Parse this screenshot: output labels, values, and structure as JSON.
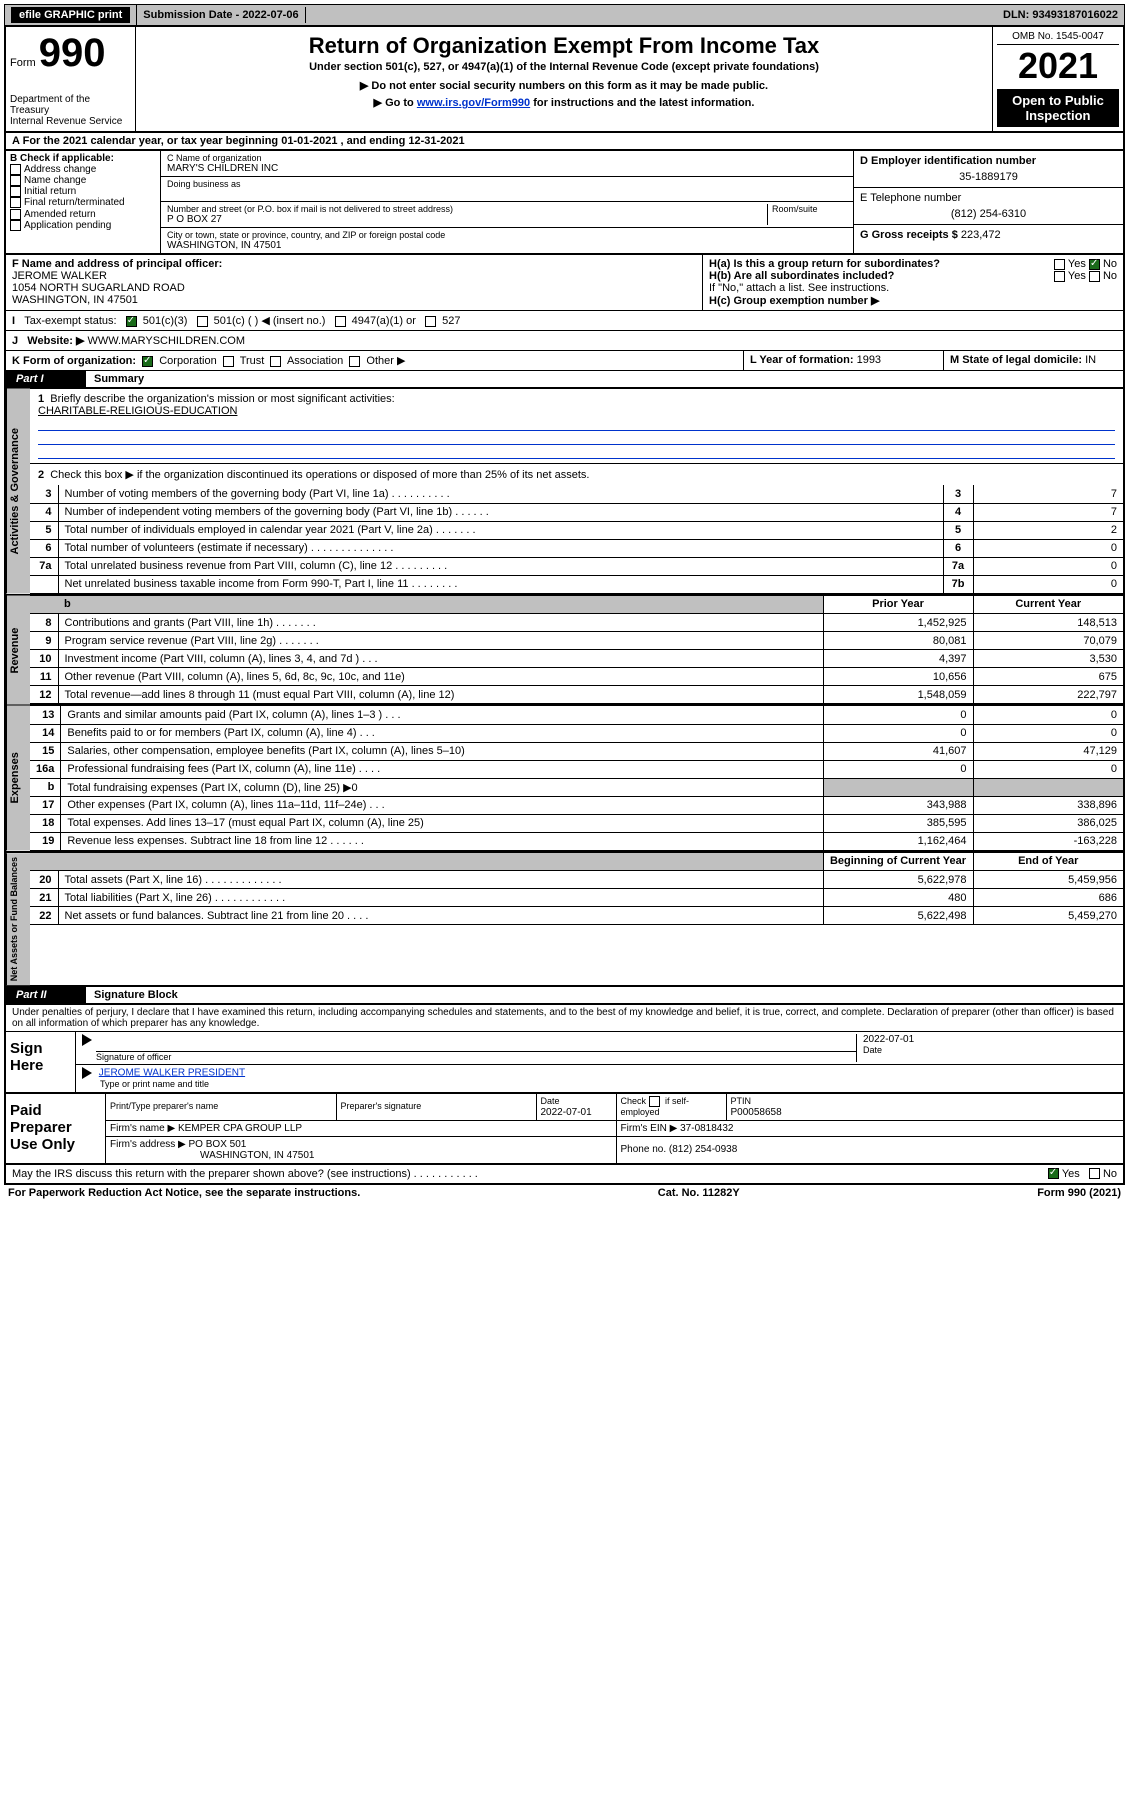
{
  "topbar": {
    "efile": "efile GRAPHIC print",
    "submission_label": "Submission Date - 2022-07-06",
    "dln": "DLN: 93493187016022"
  },
  "header": {
    "form_prefix": "Form",
    "form_number": "990",
    "dept": "Department of the Treasury",
    "irs": "Internal Revenue Service",
    "title": "Return of Organization Exempt From Income Tax",
    "sub1": "Under section 501(c), 527, or 4947(a)(1) of the Internal Revenue Code (except private foundations)",
    "sub2": "▶ Do not enter social security numbers on this form as it may be made public.",
    "sub3_pre": "▶ Go to ",
    "sub3_link": "www.irs.gov/Form990",
    "sub3_post": " for instructions and the latest information.",
    "omb": "OMB No. 1545-0047",
    "year": "2021",
    "open_public": "Open to Public Inspection"
  },
  "line_a": "For the 2021 calendar year, or tax year beginning 01-01-2021    , and ending 12-31-2021",
  "box_b": {
    "label": "B Check if applicable:",
    "opts": [
      "Address change",
      "Name change",
      "Initial return",
      "Final return/terminated",
      "Amended return",
      "Application pending"
    ]
  },
  "box_c": {
    "name_label": "C Name of organization",
    "name": "MARY'S CHILDREN INC",
    "dba_label": "Doing business as",
    "addr_label": "Number and street (or P.O. box if mail is not delivered to street address)",
    "room_label": "Room/suite",
    "addr": "P O BOX 27",
    "city_label": "City or town, state or province, country, and ZIP or foreign postal code",
    "city": "WASHINGTON, IN  47501"
  },
  "box_d": {
    "label": "D Employer identification number",
    "val": "35-1889179"
  },
  "box_e": {
    "label": "E Telephone number",
    "val": "(812) 254-6310"
  },
  "box_g": {
    "label": "G Gross receipts $",
    "val": "223,472"
  },
  "box_f": {
    "label": "F Name and address of principal officer:",
    "name": "JEROME WALKER",
    "addr1": "1054 NORTH SUGARLAND ROAD",
    "addr2": "WASHINGTON, IN  47501"
  },
  "box_h": {
    "ha": "H(a)  Is this a group return for subordinates?",
    "hb": "H(b)  Are all subordinates included?",
    "hb_note": "If \"No,\" attach a list. See instructions.",
    "hc": "H(c)  Group exemption number ▶",
    "yes": "Yes",
    "no": "No"
  },
  "line_i": {
    "label": "Tax-exempt status:",
    "opts": [
      "501(c)(3)",
      "501(c) (   ) ◀ (insert no.)",
      "4947(a)(1) or",
      "527"
    ]
  },
  "line_j": {
    "label": "Website: ▶",
    "val": "WWW.MARYSCHILDREN.COM"
  },
  "line_k": {
    "label": "K Form of organization:",
    "opts": [
      "Corporation",
      "Trust",
      "Association",
      "Other ▶"
    ]
  },
  "line_l": {
    "label": "L Year of formation:",
    "val": "1993"
  },
  "line_m": {
    "label": "M State of legal domicile:",
    "val": "IN"
  },
  "part1": {
    "label": "Part I",
    "title": "Summary",
    "q1": "Briefly describe the organization's mission or most significant activities:",
    "mission": "CHARITABLE-RELIGIOUS-EDUCATION",
    "q2": "Check this box ▶      if the organization discontinued its operations or disposed of more than 25% of its net assets.",
    "sections": {
      "governance": "Activities & Governance",
      "revenue": "Revenue",
      "expenses": "Expenses",
      "net": "Net Assets or Fund Balances"
    },
    "governance_rows": [
      {
        "n": "3",
        "d": "Number of voting members of the governing body (Part VI, line 1a)   .    .    .    .    .    .    .    .    .    .",
        "c": "3",
        "v": "7"
      },
      {
        "n": "4",
        "d": "Number of independent voting members of the governing body (Part VI, line 1b)   .    .    .    .    .    .",
        "c": "4",
        "v": "7"
      },
      {
        "n": "5",
        "d": "Total number of individuals employed in calendar year 2021 (Part V, line 2a)   .    .    .    .    .    .    .",
        "c": "5",
        "v": "2"
      },
      {
        "n": "6",
        "d": "Total number of volunteers (estimate if necessary)   .    .    .    .    .    .    .    .    .    .    .    .    .    .",
        "c": "6",
        "v": "0"
      },
      {
        "n": "7a",
        "d": "Total unrelated business revenue from Part VIII, column (C), line 12   .    .    .    .    .    .    .    .    .",
        "c": "7a",
        "v": "0"
      },
      {
        "n": "",
        "d": "Net unrelated business taxable income from Form 990-T, Part I, line 11   .    .    .    .    .    .    .    .",
        "c": "7b",
        "v": "0"
      }
    ],
    "col_headers": {
      "prior": "Prior Year",
      "current": "Current Year",
      "begin": "Beginning of Current Year",
      "end": "End of Year"
    },
    "revenue_rows": [
      {
        "n": "8",
        "d": "Contributions and grants (Part VIII, line 1h)   .    .    .    .    .    .    .",
        "p": "1,452,925",
        "c": "148,513"
      },
      {
        "n": "9",
        "d": "Program service revenue (Part VIII, line 2g)   .    .    .    .    .    .    .",
        "p": "80,081",
        "c": "70,079"
      },
      {
        "n": "10",
        "d": "Investment income (Part VIII, column (A), lines 3, 4, and 7d )   .    .    .",
        "p": "4,397",
        "c": "3,530"
      },
      {
        "n": "11",
        "d": "Other revenue (Part VIII, column (A), lines 5, 6d, 8c, 9c, 10c, and 11e)",
        "p": "10,656",
        "c": "675"
      },
      {
        "n": "12",
        "d": "Total revenue—add lines 8 through 11 (must equal Part VIII, column (A), line 12)",
        "p": "1,548,059",
        "c": "222,797"
      }
    ],
    "expense_rows": [
      {
        "n": "13",
        "d": "Grants and similar amounts paid (Part IX, column (A), lines 1–3 )   .    .    .",
        "p": "0",
        "c": "0"
      },
      {
        "n": "14",
        "d": "Benefits paid to or for members (Part IX, column (A), line 4)   .    .    .",
        "p": "0",
        "c": "0"
      },
      {
        "n": "15",
        "d": "Salaries, other compensation, employee benefits (Part IX, column (A), lines 5–10)",
        "p": "41,607",
        "c": "47,129"
      },
      {
        "n": "16a",
        "d": "Professional fundraising fees (Part IX, column (A), line 11e)   .    .    .    .",
        "p": "0",
        "c": "0"
      },
      {
        "n": "b",
        "d": "Total fundraising expenses (Part IX, column (D), line 25) ▶0",
        "p": "",
        "c": ""
      },
      {
        "n": "17",
        "d": "Other expenses (Part IX, column (A), lines 11a–11d, 11f–24e)   .    .    .",
        "p": "343,988",
        "c": "338,896"
      },
      {
        "n": "18",
        "d": "Total expenses. Add lines 13–17 (must equal Part IX, column (A), line 25)",
        "p": "385,595",
        "c": "386,025"
      },
      {
        "n": "19",
        "d": "Revenue less expenses. Subtract line 18 from line 12   .    .    .    .    .    .",
        "p": "1,162,464",
        "c": "-163,228"
      }
    ],
    "net_rows": [
      {
        "n": "20",
        "d": "Total assets (Part X, line 16)   .    .    .    .    .    .    .    .    .    .    .    .    .",
        "p": "5,622,978",
        "c": "5,459,956"
      },
      {
        "n": "21",
        "d": "Total liabilities (Part X, line 26)   .    .    .    .    .    .    .    .    .    .    .    .",
        "p": "480",
        "c": "686"
      },
      {
        "n": "22",
        "d": "Net assets or fund balances. Subtract line 21 from line 20   .    .    .    .",
        "p": "5,622,498",
        "c": "5,459,270"
      }
    ]
  },
  "part2": {
    "label": "Part II",
    "title": "Signature Block",
    "declaration": "Under penalties of perjury, I declare that I have examined this return, including accompanying schedules and statements, and to the best of my knowledge and belief, it is true, correct, and complete. Declaration of preparer (other than officer) is based on all information of which preparer has any knowledge."
  },
  "sign": {
    "here": "Sign Here",
    "sig_label": "Signature of officer",
    "date_label": "Date",
    "date_val": "2022-07-01",
    "name": "JEROME WALKER PRESIDENT",
    "name_label": "Type or print name and title"
  },
  "preparer": {
    "here": "Paid Preparer Use Only",
    "h1": "Print/Type preparer's name",
    "h2": "Preparer's signature",
    "h3": "Date",
    "date": "2022-07-01",
    "h4": "Check        if self-employed",
    "h5": "PTIN",
    "ptin": "P00058658",
    "firm_name_l": "Firm's name      ▶",
    "firm_name": "KEMPER CPA GROUP LLP",
    "firm_ein_l": "Firm's EIN ▶",
    "firm_ein": "37-0818432",
    "firm_addr_l": "Firm's address ▶",
    "firm_addr1": "PO BOX 501",
    "firm_addr2": "WASHINGTON, IN  47501",
    "phone_l": "Phone no.",
    "phone": "(812) 254-0938",
    "discuss": "May the IRS discuss this return with the preparer shown above? (see instructions)   .    .    .    .    .    .    .    .    .    .    .",
    "yes": "Yes",
    "no": "No"
  },
  "footer": {
    "left": "For Paperwork Reduction Act Notice, see the separate instructions.",
    "mid": "Cat. No. 11282Y",
    "right": "Form 990 (2021)"
  }
}
